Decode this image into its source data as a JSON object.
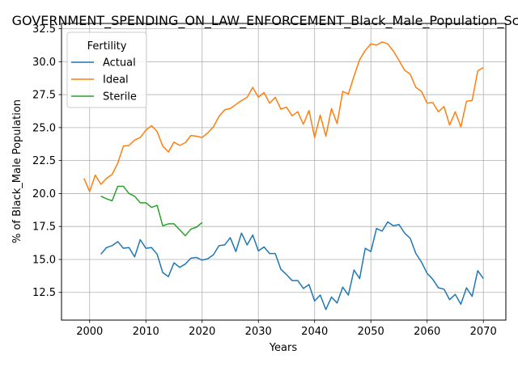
{
  "chart_data": {
    "type": "line",
    "title": "GOVERNMENT_SPENDING_ON_LAW_ENFORCEMENT_Black_Male_Population_Sc",
    "xlabel": "Years",
    "ylabel": "% of Black_Male Population",
    "xlim": [
      1995,
      2074
    ],
    "ylim": [
      10.4,
      32.9
    ],
    "xticks": [
      2000,
      2010,
      2020,
      2030,
      2040,
      2050,
      2060,
      2070
    ],
    "yticks": [
      12.5,
      15.0,
      17.5,
      20.0,
      22.5,
      25.0,
      27.5,
      30.0,
      32.5
    ],
    "grid": true,
    "legend": {
      "title": "Fertility",
      "placement": "top-left"
    },
    "colors": {
      "Actual": "#1f77b4",
      "Ideal": "#ff7f0e",
      "Sterile": "#2ca02c"
    },
    "series": [
      {
        "name": "Actual",
        "x": [
          2002,
          2003,
          2004,
          2005,
          2006,
          2007,
          2008,
          2009,
          2010,
          2011,
          2012,
          2013,
          2014,
          2015,
          2016,
          2017,
          2018,
          2019,
          2020,
          2021,
          2022,
          2023,
          2024,
          2025,
          2026,
          2027,
          2028,
          2029,
          2030,
          2031,
          2032,
          2033,
          2034,
          2035,
          2036,
          2037,
          2038,
          2039,
          2040,
          2041,
          2042,
          2043,
          2044,
          2045,
          2046,
          2047,
          2048,
          2049,
          2050,
          2051,
          2052,
          2053,
          2054,
          2055,
          2056,
          2057,
          2058,
          2059,
          2060,
          2061,
          2062,
          2063,
          2064,
          2065,
          2066,
          2067,
          2068,
          2069,
          2070
        ],
        "values": [
          15.4,
          15.9,
          16.05,
          16.35,
          15.85,
          15.9,
          15.2,
          16.5,
          15.85,
          15.9,
          15.4,
          14.0,
          13.7,
          14.75,
          14.4,
          14.65,
          15.1,
          15.15,
          14.95,
          15.05,
          15.35,
          16.05,
          16.1,
          16.65,
          15.6,
          17.0,
          16.1,
          16.85,
          15.65,
          15.95,
          15.45,
          15.45,
          14.25,
          13.85,
          13.4,
          13.4,
          12.8,
          13.1,
          11.85,
          12.3,
          11.2,
          12.15,
          11.7,
          12.9,
          12.3,
          14.2,
          13.55,
          15.85,
          15.6,
          17.35,
          17.15,
          17.85,
          17.55,
          17.65,
          17.0,
          16.6,
          15.45,
          14.8,
          13.95,
          13.5,
          12.85,
          12.75,
          11.95,
          12.35,
          11.6,
          12.85,
          12.2,
          14.15,
          13.55
        ]
      },
      {
        "name": "Ideal",
        "x": [
          1999,
          2000,
          2001,
          2002,
          2003,
          2004,
          2005,
          2006,
          2007,
          2008,
          2009,
          2010,
          2011,
          2012,
          2013,
          2014,
          2015,
          2016,
          2017,
          2018,
          2019,
          2020,
          2021,
          2022,
          2023,
          2024,
          2025,
          2026,
          2027,
          2028,
          2029,
          2030,
          2031,
          2032,
          2033,
          2034,
          2035,
          2036,
          2037,
          2038,
          2039,
          2040,
          2041,
          2042,
          2043,
          2044,
          2045,
          2046,
          2047,
          2048,
          2049,
          2050,
          2051,
          2052,
          2053,
          2054,
          2055,
          2056,
          2057,
          2058,
          2059,
          2060,
          2061,
          2062,
          2063,
          2064,
          2065,
          2066,
          2067,
          2068,
          2069,
          2070
        ],
        "values": [
          21.15,
          20.15,
          21.4,
          20.7,
          21.15,
          21.45,
          22.3,
          23.6,
          23.65,
          24.05,
          24.25,
          24.8,
          25.15,
          24.7,
          23.6,
          23.15,
          23.9,
          23.65,
          23.85,
          24.4,
          24.35,
          24.25,
          24.6,
          25.05,
          25.85,
          26.35,
          26.45,
          26.75,
          27.05,
          27.3,
          28.05,
          27.3,
          27.65,
          26.85,
          27.3,
          26.4,
          26.55,
          25.9,
          26.2,
          25.25,
          26.3,
          24.25,
          25.95,
          24.35,
          26.45,
          25.3,
          27.75,
          27.55,
          28.9,
          30.15,
          30.85,
          31.35,
          31.25,
          31.5,
          31.35,
          30.8,
          30.1,
          29.35,
          29.05,
          28.05,
          27.75,
          26.85,
          26.9,
          26.2,
          26.6,
          25.2,
          26.2,
          25.05,
          27.0,
          27.05,
          29.3,
          29.55
        ]
      },
      {
        "name": "Sterile",
        "x": [
          2002,
          2003,
          2004,
          2005,
          2006,
          2007,
          2008,
          2009,
          2010,
          2011,
          2012,
          2013,
          2014,
          2015,
          2016,
          2017,
          2018,
          2019,
          2020
        ],
        "values": [
          19.8,
          19.6,
          19.45,
          20.55,
          20.55,
          20.0,
          19.8,
          19.3,
          19.3,
          18.95,
          19.1,
          17.55,
          17.7,
          17.7,
          17.25,
          16.8,
          17.3,
          17.45,
          17.8
        ]
      }
    ]
  }
}
